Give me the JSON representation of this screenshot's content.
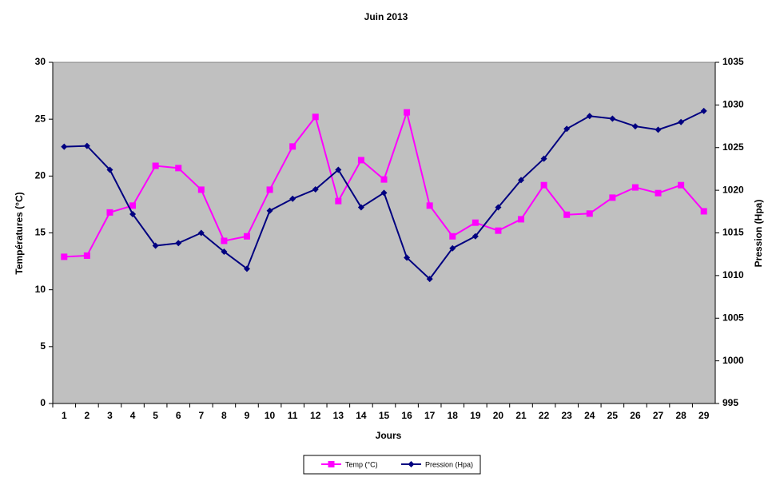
{
  "chart_data": {
    "type": "line",
    "title": "Juin 2013",
    "x_label": "Jours",
    "y_label": "Températures (°C)",
    "y2_label": "Pression (Hpa)",
    "categories": [
      "1",
      "2",
      "3",
      "4",
      "5",
      "6",
      "7",
      "8",
      "9",
      "10",
      "11",
      "12",
      "13",
      "14",
      "15",
      "16",
      "17",
      "18",
      "19",
      "20",
      "21",
      "22",
      "23",
      "24",
      "25",
      "26",
      "27",
      "28",
      "29"
    ],
    "ylim": [
      0,
      30
    ],
    "yticks": [
      0,
      5,
      10,
      15,
      20,
      25,
      30
    ],
    "y2lim": [
      995,
      1035
    ],
    "y2ticks": [
      995,
      1000,
      1005,
      1010,
      1015,
      1020,
      1025,
      1030,
      1035
    ],
    "plot_background": "#c0c0c0",
    "series": [
      {
        "name": "Temp (°C)",
        "color": "#ff00ff",
        "marker": "square",
        "values": [
          12.9,
          13.0,
          16.8,
          17.4,
          20.9,
          20.7,
          18.8,
          14.3,
          14.7,
          18.8,
          22.6,
          25.2,
          17.8,
          21.4,
          19.7,
          25.6,
          17.4,
          14.7,
          15.9,
          15.2,
          16.2,
          19.2,
          16.6,
          16.7,
          18.1,
          19.0,
          18.5,
          19.2,
          16.9
        ]
      },
      {
        "name": "Pression (Hpa)",
        "color": "#000080",
        "marker": "diamond",
        "axis": "y2",
        "values": [
          1025.1,
          1025.2,
          1022.4,
          1017.2,
          1013.5,
          1013.8,
          1015.0,
          1012.8,
          1010.8,
          1017.6,
          1019.0,
          1020.1,
          1022.4,
          1018.0,
          1019.7,
          1012.1,
          1009.6,
          1013.2,
          1014.6,
          1018.0,
          1021.2,
          1023.7,
          1027.2,
          1028.7,
          1028.4,
          1027.5,
          1027.1,
          1028.0,
          1029.3
        ]
      }
    ]
  }
}
